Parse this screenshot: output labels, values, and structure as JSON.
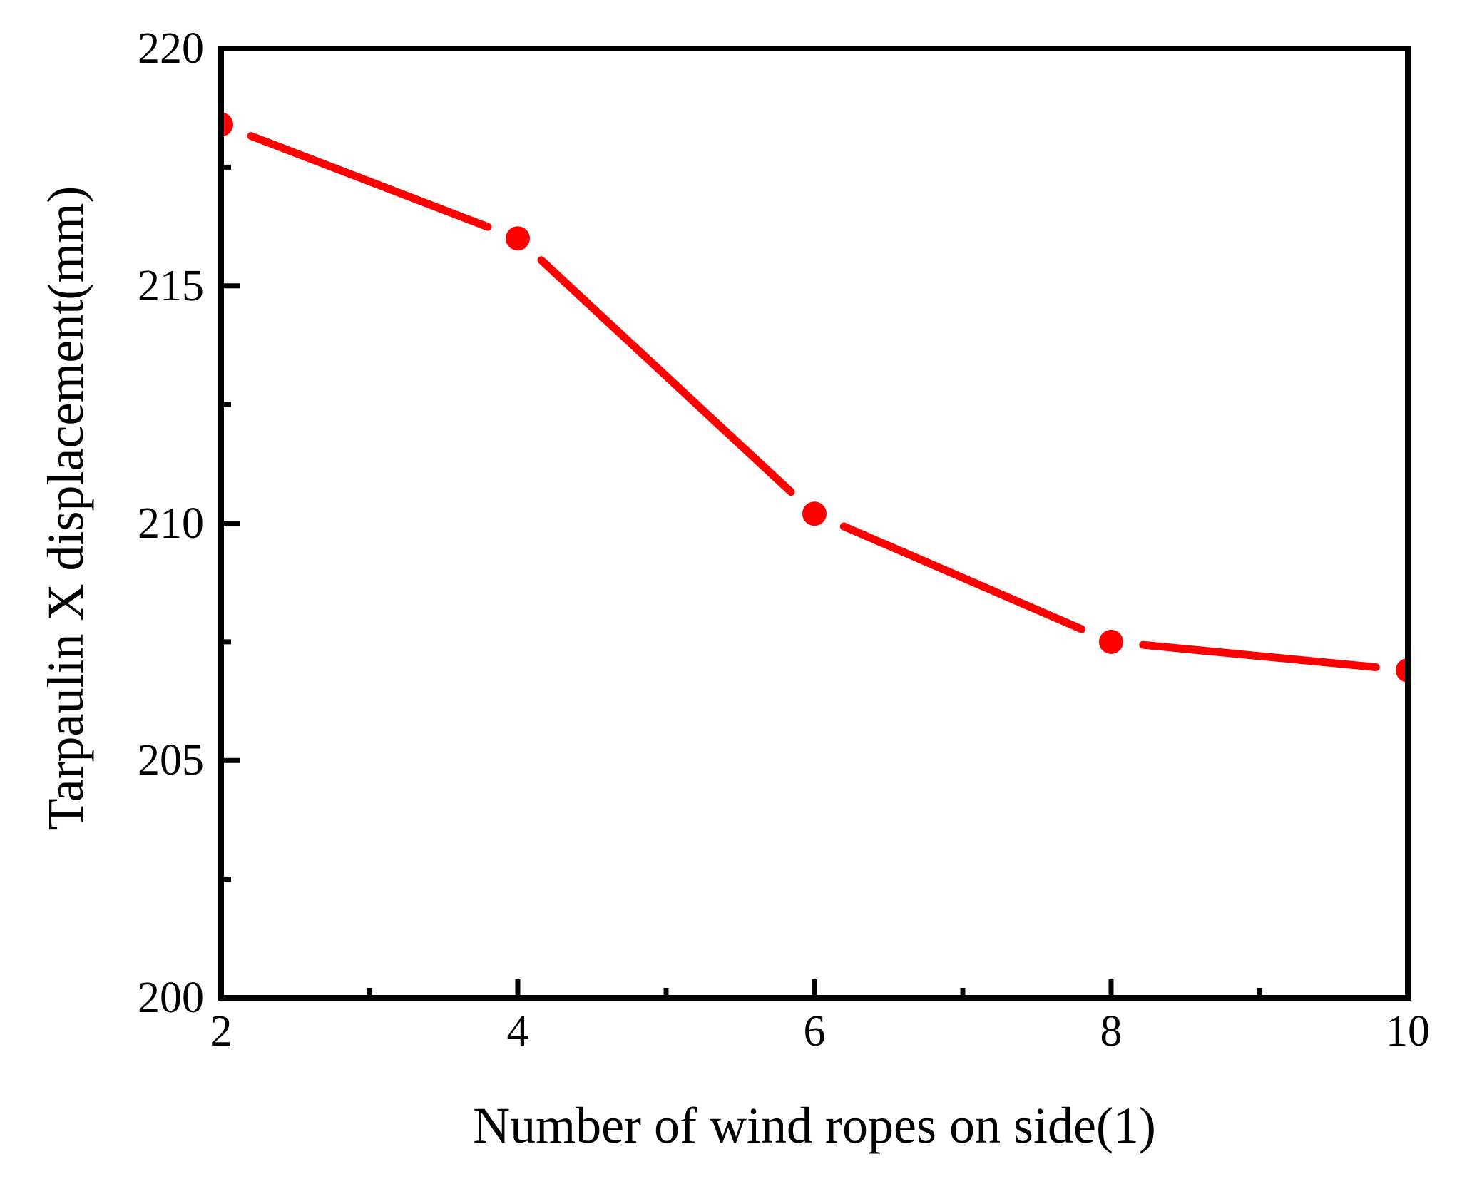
{
  "figure": {
    "background": "#ffffff",
    "text_color": "#000000"
  },
  "chart_data": {
    "type": "line",
    "title": "",
    "xlabel": "Number of wind ropes on side(1)",
    "ylabel": "Tarpaulin X displacement(mm)",
    "x": [
      2,
      4,
      6,
      8,
      10
    ],
    "y": [
      218.4,
      216.0,
      210.2,
      207.5,
      206.9
    ],
    "xlim": [
      2,
      10
    ],
    "ylim": [
      200,
      220
    ],
    "x_major_ticks": [
      2,
      4,
      6,
      8,
      10
    ],
    "x_minor_ticks": [
      3,
      5,
      7,
      9
    ],
    "y_major_ticks": [
      200,
      205,
      210,
      215,
      220
    ],
    "y_minor_ticks": [
      202.5,
      207.5,
      212.5,
      217.5
    ],
    "x_tick_labels": [
      "2",
      "4",
      "6",
      "8",
      "10"
    ],
    "y_tick_labels": [
      "200",
      "205",
      "210",
      "215",
      "220"
    ],
    "line_color": "#ff0000",
    "marker": "circle",
    "marker_color": "#ff0000",
    "axis_color": "#000000",
    "grid": false,
    "legend": "none"
  }
}
